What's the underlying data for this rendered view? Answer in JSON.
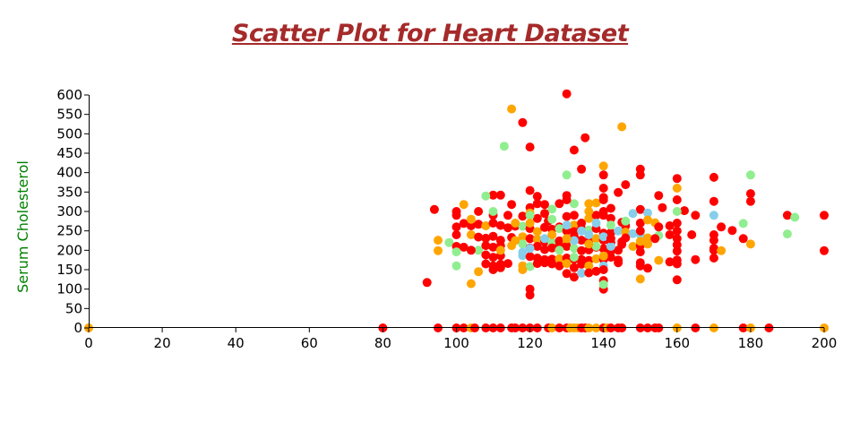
{
  "colors": {
    "title": "#a52a2a",
    "ylabel": "#008000",
    "points": [
      "#ff0000",
      "#ffa500",
      "#90ee90",
      "#87ceeb"
    ]
  },
  "chart_data": {
    "type": "scatter",
    "title": "Scatter Plot for Heart Dataset",
    "xlabel": "",
    "ylabel": "Serum Cholesterol",
    "xlim": [
      0,
      200
    ],
    "ylim": [
      0,
      600
    ],
    "grid": false,
    "x_ticks": [
      0,
      20,
      40,
      60,
      80,
      100,
      120,
      140,
      160,
      180,
      200
    ],
    "y_ticks": [
      0,
      50,
      100,
      150,
      200,
      250,
      300,
      350,
      400,
      450,
      500,
      550,
      600
    ],
    "points": [
      [
        0,
        0,
        1
      ],
      [
        80,
        0,
        0
      ],
      [
        95,
        0,
        0
      ],
      [
        100,
        0,
        0
      ],
      [
        102,
        0,
        0
      ],
      [
        104,
        0,
        1
      ],
      [
        105,
        0,
        0
      ],
      [
        108,
        0,
        0
      ],
      [
        110,
        0,
        0
      ],
      [
        112,
        0,
        0
      ],
      [
        115,
        0,
        0
      ],
      [
        116,
        0,
        0
      ],
      [
        118,
        0,
        0
      ],
      [
        120,
        0,
        0
      ],
      [
        122,
        0,
        0
      ],
      [
        125,
        0,
        0
      ],
      [
        126,
        0,
        1
      ],
      [
        128,
        0,
        0
      ],
      [
        130,
        0,
        0
      ],
      [
        131,
        0,
        1
      ],
      [
        132,
        0,
        1
      ],
      [
        133,
        0,
        1
      ],
      [
        134,
        0,
        0
      ],
      [
        135,
        0,
        0
      ],
      [
        136,
        0,
        1
      ],
      [
        138,
        0,
        1
      ],
      [
        140,
        0,
        0
      ],
      [
        141,
        0,
        1
      ],
      [
        142,
        0,
        0
      ],
      [
        144,
        0,
        0
      ],
      [
        145,
        0,
        0
      ],
      [
        150,
        0,
        0
      ],
      [
        152,
        0,
        0
      ],
      [
        154,
        0,
        0
      ],
      [
        155,
        0,
        0
      ],
      [
        160,
        0,
        1
      ],
      [
        165,
        0,
        0
      ],
      [
        170,
        0,
        1
      ],
      [
        178,
        0,
        0
      ],
      [
        180,
        0,
        1
      ],
      [
        185,
        0,
        0
      ],
      [
        200,
        0,
        1
      ],
      [
        130,
        603,
        0
      ],
      [
        115,
        564,
        1
      ],
      [
        118,
        529,
        0
      ],
      [
        145,
        518,
        1
      ],
      [
        135,
        490,
        0
      ],
      [
        113,
        468,
        2
      ],
      [
        120,
        466,
        0
      ],
      [
        132,
        458,
        0
      ],
      [
        140,
        417,
        1
      ],
      [
        134,
        409,
        0
      ],
      [
        150,
        409,
        0
      ],
      [
        140,
        394,
        0
      ],
      [
        130,
        394,
        2
      ],
      [
        180,
        394,
        2
      ],
      [
        150,
        394,
        0
      ],
      [
        160,
        385,
        0
      ],
      [
        170,
        388,
        0
      ],
      [
        146,
        369,
        0
      ],
      [
        140,
        360,
        0
      ],
      [
        160,
        360,
        1
      ],
      [
        120,
        354,
        0
      ],
      [
        144,
        349,
        0
      ],
      [
        180,
        346,
        0
      ],
      [
        110,
        342,
        0
      ],
      [
        130,
        341,
        0
      ],
      [
        155,
        341,
        0
      ],
      [
        108,
        340,
        2
      ],
      [
        112,
        342,
        0
      ],
      [
        122,
        339,
        0
      ],
      [
        140,
        336,
        0
      ],
      [
        170,
        326,
        0
      ],
      [
        180,
        326,
        0
      ],
      [
        115,
        318,
        0
      ],
      [
        128,
        320,
        0
      ],
      [
        132,
        320,
        2
      ],
      [
        136,
        320,
        1
      ],
      [
        102,
        318,
        1
      ],
      [
        124,
        318,
        0
      ],
      [
        138,
        322,
        1
      ],
      [
        162,
        302,
        0
      ],
      [
        106,
        300,
        0
      ],
      [
        100,
        300,
        0
      ],
      [
        94,
        305,
        0
      ],
      [
        120,
        310,
        0
      ],
      [
        126,
        306,
        2
      ],
      [
        142,
        308,
        0
      ],
      [
        150,
        305,
        0
      ],
      [
        165,
        290,
        0
      ],
      [
        190,
        290,
        0
      ],
      [
        200,
        290,
        0
      ],
      [
        192,
        285,
        2
      ],
      [
        178,
        269,
        2
      ],
      [
        170,
        290,
        3
      ],
      [
        152,
        296,
        3
      ],
      [
        148,
        295,
        3
      ],
      [
        160,
        300,
        2
      ],
      [
        110,
        290,
        0
      ],
      [
        118,
        288,
        0
      ],
      [
        120,
        296,
        1
      ],
      [
        122,
        282,
        0
      ],
      [
        125,
        275,
        0
      ],
      [
        128,
        260,
        0
      ],
      [
        130,
        287,
        0
      ],
      [
        132,
        265,
        1
      ],
      [
        134,
        270,
        0
      ],
      [
        136,
        282,
        1
      ],
      [
        138,
        290,
        0
      ],
      [
        140,
        290,
        0
      ],
      [
        142,
        282,
        0
      ],
      [
        145,
        272,
        0
      ],
      [
        146,
        263,
        0
      ],
      [
        150,
        270,
        0
      ],
      [
        152,
        278,
        1
      ],
      [
        154,
        271,
        1
      ],
      [
        158,
        263,
        0
      ],
      [
        160,
        270,
        0
      ],
      [
        175,
        251,
        0
      ],
      [
        172,
        260,
        0
      ],
      [
        190,
        242,
        2
      ],
      [
        170,
        240,
        0
      ],
      [
        100,
        260,
        0
      ],
      [
        102,
        269,
        0
      ],
      [
        104,
        263,
        0
      ],
      [
        106,
        267,
        0
      ],
      [
        108,
        263,
        1
      ],
      [
        110,
        270,
        0
      ],
      [
        112,
        264,
        0
      ],
      [
        114,
        258,
        0
      ],
      [
        116,
        262,
        0
      ],
      [
        118,
        262,
        2
      ],
      [
        120,
        256,
        0
      ],
      [
        122,
        248,
        1
      ],
      [
        124,
        259,
        0
      ],
      [
        126,
        254,
        0
      ],
      [
        128,
        256,
        2
      ],
      [
        130,
        250,
        0
      ],
      [
        132,
        248,
        0
      ],
      [
        134,
        256,
        0
      ],
      [
        136,
        252,
        2
      ],
      [
        138,
        256,
        0
      ],
      [
        140,
        244,
        0
      ],
      [
        142,
        245,
        0
      ],
      [
        144,
        250,
        3
      ],
      [
        146,
        247,
        1
      ],
      [
        148,
        243,
        3
      ],
      [
        150,
        240,
        3
      ],
      [
        152,
        232,
        1
      ],
      [
        155,
        238,
        2
      ],
      [
        158,
        240,
        0
      ],
      [
        160,
        230,
        0
      ],
      [
        170,
        226,
        0
      ],
      [
        178,
        230,
        0
      ],
      [
        100,
        240,
        0
      ],
      [
        104,
        240,
        1
      ],
      [
        106,
        234,
        0
      ],
      [
        108,
        231,
        0
      ],
      [
        110,
        236,
        0
      ],
      [
        112,
        226,
        0
      ],
      [
        115,
        233,
        0
      ],
      [
        118,
        235,
        1
      ],
      [
        120,
        230,
        0
      ],
      [
        122,
        228,
        1
      ],
      [
        124,
        222,
        0
      ],
      [
        126,
        220,
        2
      ],
      [
        128,
        224,
        0
      ],
      [
        130,
        219,
        1
      ],
      [
        132,
        236,
        0
      ],
      [
        134,
        226,
        0
      ],
      [
        136,
        224,
        0
      ],
      [
        138,
        230,
        1
      ],
      [
        140,
        226,
        0
      ],
      [
        142,
        220,
        0
      ],
      [
        145,
        222,
        0
      ],
      [
        148,
        210,
        1
      ],
      [
        150,
        212,
        0
      ],
      [
        152,
        216,
        1
      ],
      [
        160,
        214,
        0
      ],
      [
        170,
        205,
        0
      ],
      [
        180,
        216,
        1
      ],
      [
        98,
        220,
        2
      ],
      [
        95,
        226,
        1
      ],
      [
        100,
        210,
        0
      ],
      [
        102,
        208,
        0
      ],
      [
        106,
        200,
        2
      ],
      [
        108,
        212,
        0
      ],
      [
        110,
        208,
        0
      ],
      [
        112,
        212,
        0
      ],
      [
        115,
        212,
        1
      ],
      [
        118,
        216,
        2
      ],
      [
        120,
        206,
        0
      ],
      [
        122,
        210,
        0
      ],
      [
        124,
        202,
        0
      ],
      [
        126,
        206,
        0
      ],
      [
        128,
        212,
        0
      ],
      [
        130,
        210,
        0
      ],
      [
        132,
        205,
        2
      ],
      [
        134,
        199,
        0
      ],
      [
        136,
        201,
        0
      ],
      [
        138,
        208,
        0
      ],
      [
        140,
        204,
        0
      ],
      [
        142,
        198,
        0
      ],
      [
        144,
        200,
        0
      ],
      [
        150,
        196,
        0
      ],
      [
        160,
        198,
        0
      ],
      [
        170,
        200,
        0
      ],
      [
        172,
        199,
        1
      ],
      [
        200,
        199,
        0
      ],
      [
        95,
        199,
        1
      ],
      [
        100,
        196,
        2
      ],
      [
        104,
        200,
        0
      ],
      [
        108,
        188,
        0
      ],
      [
        110,
        182,
        0
      ],
      [
        112,
        186,
        0
      ],
      [
        118,
        186,
        3
      ],
      [
        120,
        184,
        0
      ],
      [
        122,
        180,
        0
      ],
      [
        124,
        176,
        0
      ],
      [
        126,
        177,
        0
      ],
      [
        128,
        178,
        1
      ],
      [
        130,
        180,
        0
      ],
      [
        132,
        177,
        0
      ],
      [
        134,
        176,
        0
      ],
      [
        136,
        174,
        0
      ],
      [
        138,
        178,
        1
      ],
      [
        140,
        176,
        0
      ],
      [
        142,
        182,
        0
      ],
      [
        144,
        175,
        0
      ],
      [
        150,
        168,
        0
      ],
      [
        155,
        174,
        1
      ],
      [
        158,
        170,
        0
      ],
      [
        160,
        175,
        0
      ],
      [
        165,
        176,
        0
      ],
      [
        170,
        180,
        0
      ],
      [
        108,
        165,
        0
      ],
      [
        110,
        160,
        0
      ],
      [
        112,
        164,
        0
      ],
      [
        114,
        166,
        0
      ],
      [
        118,
        160,
        1
      ],
      [
        120,
        158,
        2
      ],
      [
        122,
        166,
        0
      ],
      [
        124,
        168,
        0
      ],
      [
        126,
        165,
        0
      ],
      [
        128,
        160,
        0
      ],
      [
        130,
        166,
        1
      ],
      [
        132,
        155,
        0
      ],
      [
        134,
        164,
        0
      ],
      [
        136,
        160,
        1
      ],
      [
        140,
        160,
        3
      ],
      [
        144,
        168,
        0
      ],
      [
        150,
        160,
        0
      ],
      [
        152,
        154,
        0
      ],
      [
        100,
        160,
        2
      ],
      [
        106,
        145,
        1
      ],
      [
        110,
        150,
        0
      ],
      [
        112,
        155,
        0
      ],
      [
        118,
        150,
        1
      ],
      [
        130,
        140,
        0
      ],
      [
        132,
        131,
        0
      ],
      [
        134,
        141,
        3
      ],
      [
        136,
        142,
        0
      ],
      [
        138,
        146,
        0
      ],
      [
        140,
        150,
        0
      ],
      [
        150,
        126,
        1
      ],
      [
        160,
        124,
        0
      ],
      [
        140,
        122,
        0
      ],
      [
        92,
        117,
        0
      ],
      [
        104,
        114,
        1
      ],
      [
        120,
        100,
        0
      ],
      [
        140,
        100,
        0
      ],
      [
        140,
        112,
        2
      ],
      [
        120,
        85,
        0
      ],
      [
        120,
        290,
        2
      ],
      [
        124,
        295,
        0
      ],
      [
        126,
        280,
        2
      ],
      [
        116,
        270,
        1
      ],
      [
        132,
        290,
        0
      ],
      [
        138,
        270,
        3
      ],
      [
        142,
        265,
        2
      ],
      [
        146,
        275,
        2
      ],
      [
        134,
        250,
        3
      ],
      [
        136,
        240,
        3
      ],
      [
        132,
        225,
        3
      ],
      [
        140,
        235,
        3
      ],
      [
        142,
        210,
        3
      ],
      [
        130,
        265,
        3
      ],
      [
        118,
        195,
        3
      ],
      [
        120,
        205,
        3
      ],
      [
        124,
        230,
        3
      ],
      [
        132,
        182,
        2
      ],
      [
        138,
        210,
        2
      ],
      [
        140,
        185,
        1
      ],
      [
        110,
        300,
        2
      ],
      [
        114,
        290,
        0
      ],
      [
        104,
        280,
        1
      ],
      [
        100,
        290,
        0
      ],
      [
        122,
        320,
        0
      ],
      [
        130,
        330,
        0
      ],
      [
        140,
        330,
        0
      ],
      [
        160,
        330,
        0
      ],
      [
        156,
        310,
        0
      ],
      [
        120,
        270,
        1
      ],
      [
        126,
        240,
        1
      ],
      [
        128,
        200,
        2
      ],
      [
        136,
        300,
        1
      ],
      [
        140,
        300,
        0
      ],
      [
        150,
        250,
        0
      ],
      [
        155,
        260,
        0
      ],
      [
        160,
        250,
        0
      ],
      [
        160,
        165,
        0
      ],
      [
        164,
        240,
        0
      ],
      [
        150,
        223,
        1
      ],
      [
        145,
        215,
        0
      ],
      [
        112,
        200,
        1
      ],
      [
        116,
        225,
        1
      ],
      [
        130,
        230,
        1
      ],
      [
        136,
        216,
        1
      ],
      [
        142,
        230,
        0
      ],
      [
        146,
        232,
        0
      ],
      [
        154,
        230,
        0
      ]
    ]
  }
}
